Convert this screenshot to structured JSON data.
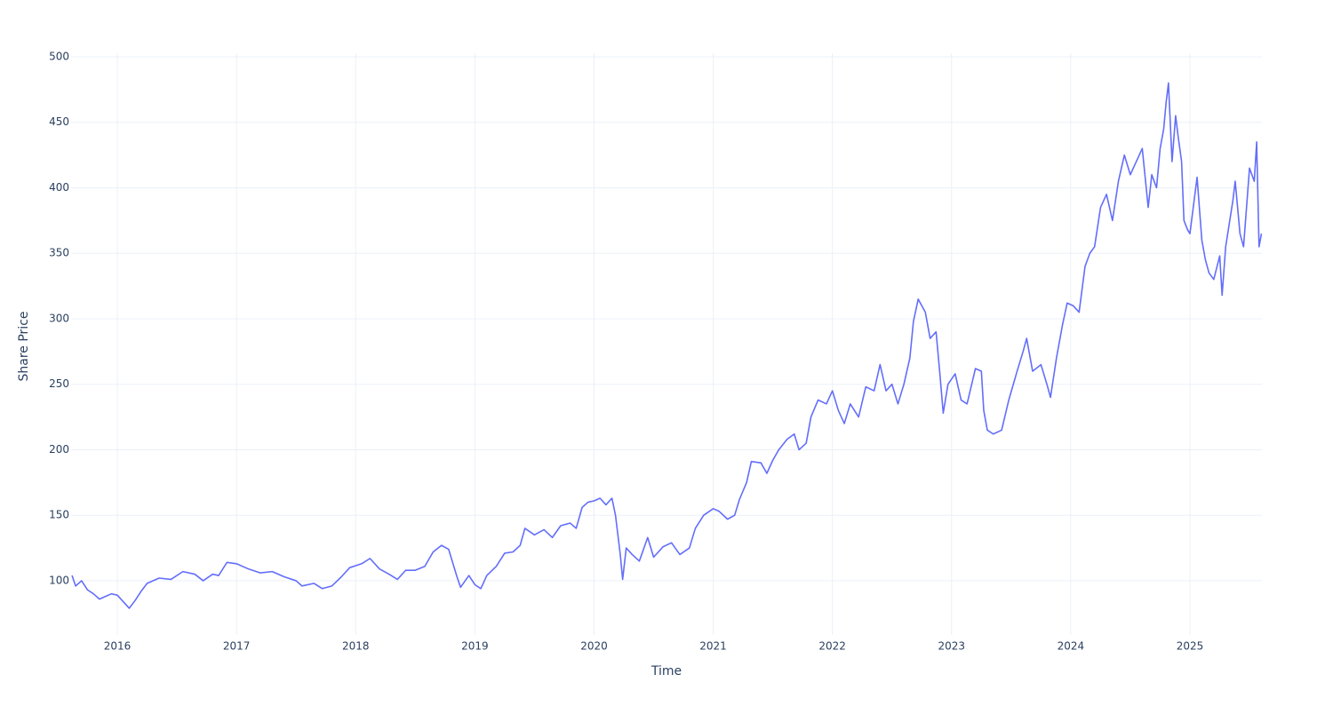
{
  "chart_data": {
    "type": "line",
    "x_label": "Time",
    "y_label": "Share Price",
    "x": [
      2015.62,
      2015.65,
      2015.7,
      2015.75,
      2015.8,
      2015.85,
      2015.9,
      2015.95,
      2016.0,
      2016.05,
      2016.1,
      2016.15,
      2016.2,
      2016.25,
      2016.35,
      2016.45,
      2016.55,
      2016.65,
      2016.72,
      2016.8,
      2016.85,
      2016.92,
      2017.0,
      2017.1,
      2017.2,
      2017.3,
      2017.4,
      2017.5,
      2017.55,
      2017.65,
      2017.72,
      2017.8,
      2017.88,
      2017.95,
      2018.05,
      2018.12,
      2018.2,
      2018.28,
      2018.35,
      2018.42,
      2018.5,
      2018.58,
      2018.65,
      2018.72,
      2018.78,
      2018.85,
      2018.88,
      2018.95,
      2019.0,
      2019.05,
      2019.1,
      2019.18,
      2019.25,
      2019.32,
      2019.38,
      2019.42,
      2019.5,
      2019.58,
      2019.65,
      2019.72,
      2019.8,
      2019.85,
      2019.9,
      2019.95,
      2020.0,
      2020.05,
      2020.1,
      2020.15,
      2020.18,
      2020.22,
      2020.24,
      2020.27,
      2020.32,
      2020.38,
      2020.45,
      2020.5,
      2020.58,
      2020.65,
      2020.72,
      2020.8,
      2020.85,
      2020.92,
      2021.0,
      2021.05,
      2021.12,
      2021.18,
      2021.22,
      2021.28,
      2021.32,
      2021.4,
      2021.45,
      2021.5,
      2021.55,
      2021.62,
      2021.68,
      2021.72,
      2021.78,
      2021.82,
      2021.88,
      2021.95,
      2022.0,
      2022.05,
      2022.1,
      2022.15,
      2022.22,
      2022.28,
      2022.35,
      2022.4,
      2022.45,
      2022.5,
      2022.55,
      2022.6,
      2022.65,
      2022.68,
      2022.72,
      2022.78,
      2022.82,
      2022.87,
      2022.9,
      2022.93,
      2022.97,
      2023.03,
      2023.08,
      2023.13,
      2023.2,
      2023.25,
      2023.27,
      2023.3,
      2023.35,
      2023.42,
      2023.48,
      2023.55,
      2023.6,
      2023.63,
      2023.68,
      2023.75,
      2023.8,
      2023.83,
      2023.88,
      2023.93,
      2023.97,
      2024.02,
      2024.07,
      2024.12,
      2024.16,
      2024.2,
      2024.25,
      2024.3,
      2024.35,
      2024.4,
      2024.45,
      2024.5,
      2024.55,
      2024.6,
      2024.65,
      2024.68,
      2024.72,
      2024.75,
      2024.78,
      2024.8,
      2024.82,
      2024.85,
      2024.88,
      2024.9,
      2024.93,
      2024.95,
      2024.98,
      2025.0,
      2025.06,
      2025.1,
      2025.13,
      2025.16,
      2025.2,
      2025.25,
      2025.27,
      2025.3,
      2025.36,
      2025.38,
      2025.42,
      2025.45,
      2025.5,
      2025.54,
      2025.56,
      2025.58,
      2025.6
    ],
    "series": [
      {
        "color": "#636efa",
        "values": [
          104,
          96,
          100,
          93,
          90,
          86,
          88,
          90,
          89,
          84,
          79,
          85,
          92,
          98,
          102,
          101,
          107,
          105,
          100,
          105,
          104,
          114,
          113,
          109,
          106,
          107,
          103,
          100,
          96,
          98,
          94,
          96,
          103,
          110,
          113,
          117,
          109,
          105,
          101,
          108,
          108,
          111,
          122,
          127,
          124,
          103,
          95,
          104,
          97,
          94,
          104,
          111,
          121,
          122,
          127,
          140,
          135,
          139,
          133,
          142,
          144,
          140,
          156,
          160,
          161,
          163,
          158,
          163,
          150,
          120,
          101,
          125,
          120,
          115,
          133,
          118,
          126,
          129,
          120,
          125,
          140,
          150,
          155,
          153,
          147,
          150,
          162,
          175,
          191,
          190,
          182,
          192,
          200,
          208,
          212,
          200,
          205,
          225,
          238,
          235,
          245,
          230,
          220,
          235,
          225,
          248,
          245,
          265,
          245,
          250,
          235,
          250,
          270,
          298,
          315,
          305,
          285,
          290,
          260,
          228,
          250,
          258,
          238,
          235,
          262,
          260,
          230,
          215,
          212,
          215,
          238,
          260,
          275,
          285,
          260,
          265,
          250,
          240,
          270,
          295,
          312,
          310,
          305,
          340,
          350,
          355,
          385,
          395,
          375,
          405,
          425,
          410,
          420,
          430,
          385,
          410,
          400,
          430,
          445,
          465,
          480,
          420,
          455,
          440,
          420,
          375,
          368,
          365,
          408,
          360,
          345,
          335,
          330,
          348,
          318,
          355,
          390,
          405,
          365,
          355,
          415,
          405,
          435,
          355,
          365
        ]
      }
    ],
    "xlim": [
      2015.612,
      2025.604
    ],
    "ylim": [
      58.6,
      502.7
    ],
    "xticks": [
      2016,
      2017,
      2018,
      2019,
      2020,
      2021,
      2022,
      2023,
      2024,
      2025
    ],
    "yticks": [
      100,
      150,
      200,
      250,
      300,
      350,
      400,
      450,
      500
    ],
    "grid": true
  }
}
